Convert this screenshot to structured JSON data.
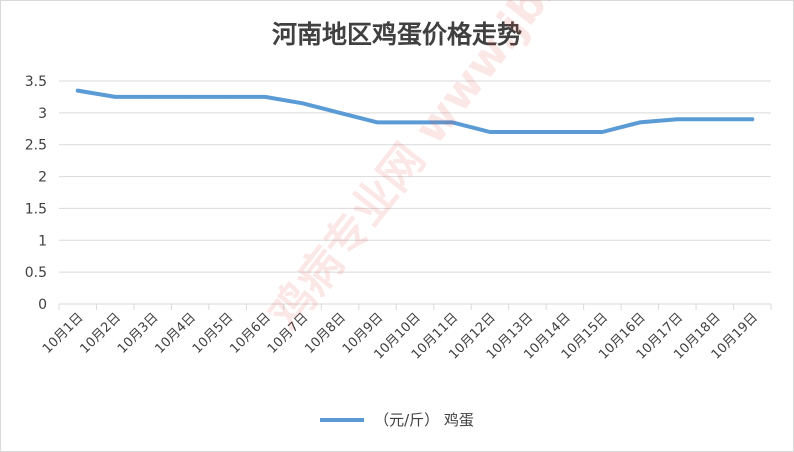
{
  "chart_data": {
    "type": "line",
    "title": "河南地区鸡蛋价格走势",
    "xlabel": "",
    "ylabel": "",
    "categories": [
      "10月1日",
      "10月2日",
      "10月3日",
      "10月4日",
      "10月5日",
      "10月6日",
      "10月7日",
      "10月8日",
      "10月9日",
      "10月10日",
      "10月11日",
      "10月12日",
      "10月13日",
      "10月14日",
      "10月15日",
      "10月16日",
      "10月17日",
      "10月18日",
      "10月19日"
    ],
    "series": [
      {
        "name": "（元/斤） 鸡蛋",
        "values": [
          3.35,
          3.25,
          3.25,
          3.25,
          3.25,
          3.25,
          3.15,
          3.0,
          2.85,
          2.85,
          2.85,
          2.7,
          2.7,
          2.7,
          2.7,
          2.85,
          2.9,
          2.9,
          2.9
        ],
        "color": "#5b9bd5"
      }
    ],
    "ylim": [
      0,
      3.5
    ],
    "yticks": [
      "0",
      "0.5",
      "1",
      "1.5",
      "2",
      "2.5",
      "3",
      "3.5"
    ],
    "grid": true,
    "legend_position": "bottom-center",
    "gridline_color": "#d9d9d9",
    "watermark_text": "鸡病专业网 www.jbzyw.com"
  }
}
